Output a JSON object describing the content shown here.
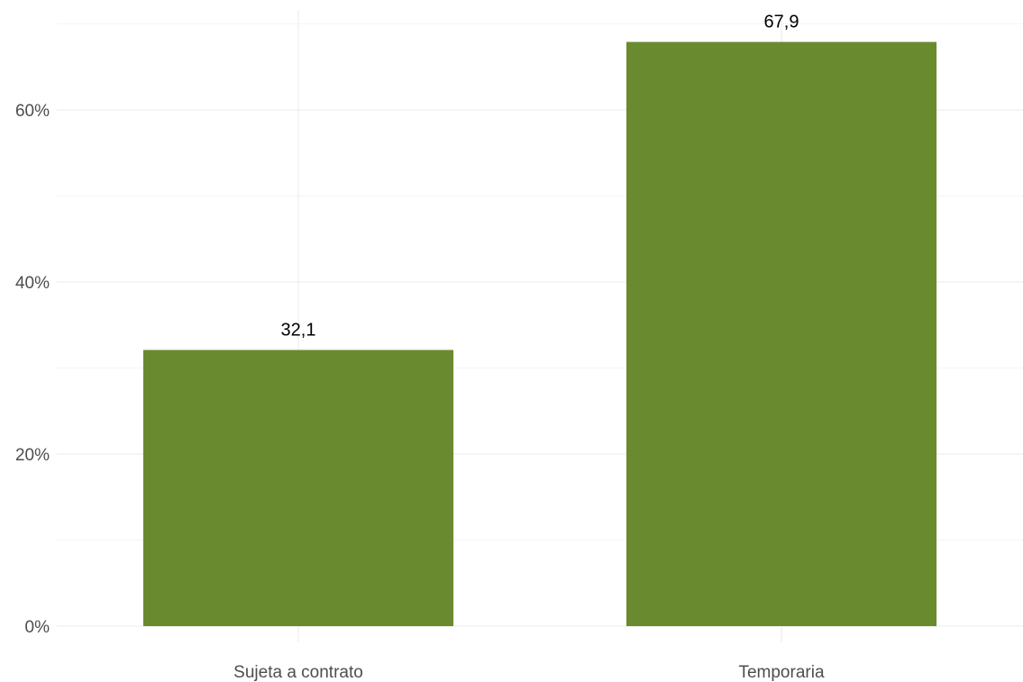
{
  "chart_data": {
    "type": "bar",
    "categories": [
      "Sujeta a contrato",
      "Temporaria"
    ],
    "values": [
      32.1,
      67.9
    ],
    "data_labels": [
      "32,1",
      "67,9"
    ],
    "title": "",
    "xlabel": "",
    "ylabel": "",
    "ylim": [
      0,
      70
    ],
    "y_ticks": [
      0,
      20,
      40,
      60
    ],
    "y_tick_labels": [
      "0%",
      "20%",
      "40%",
      "60%"
    ],
    "bar_color": "#6a8a2f",
    "grid": true,
    "legend": "none"
  }
}
